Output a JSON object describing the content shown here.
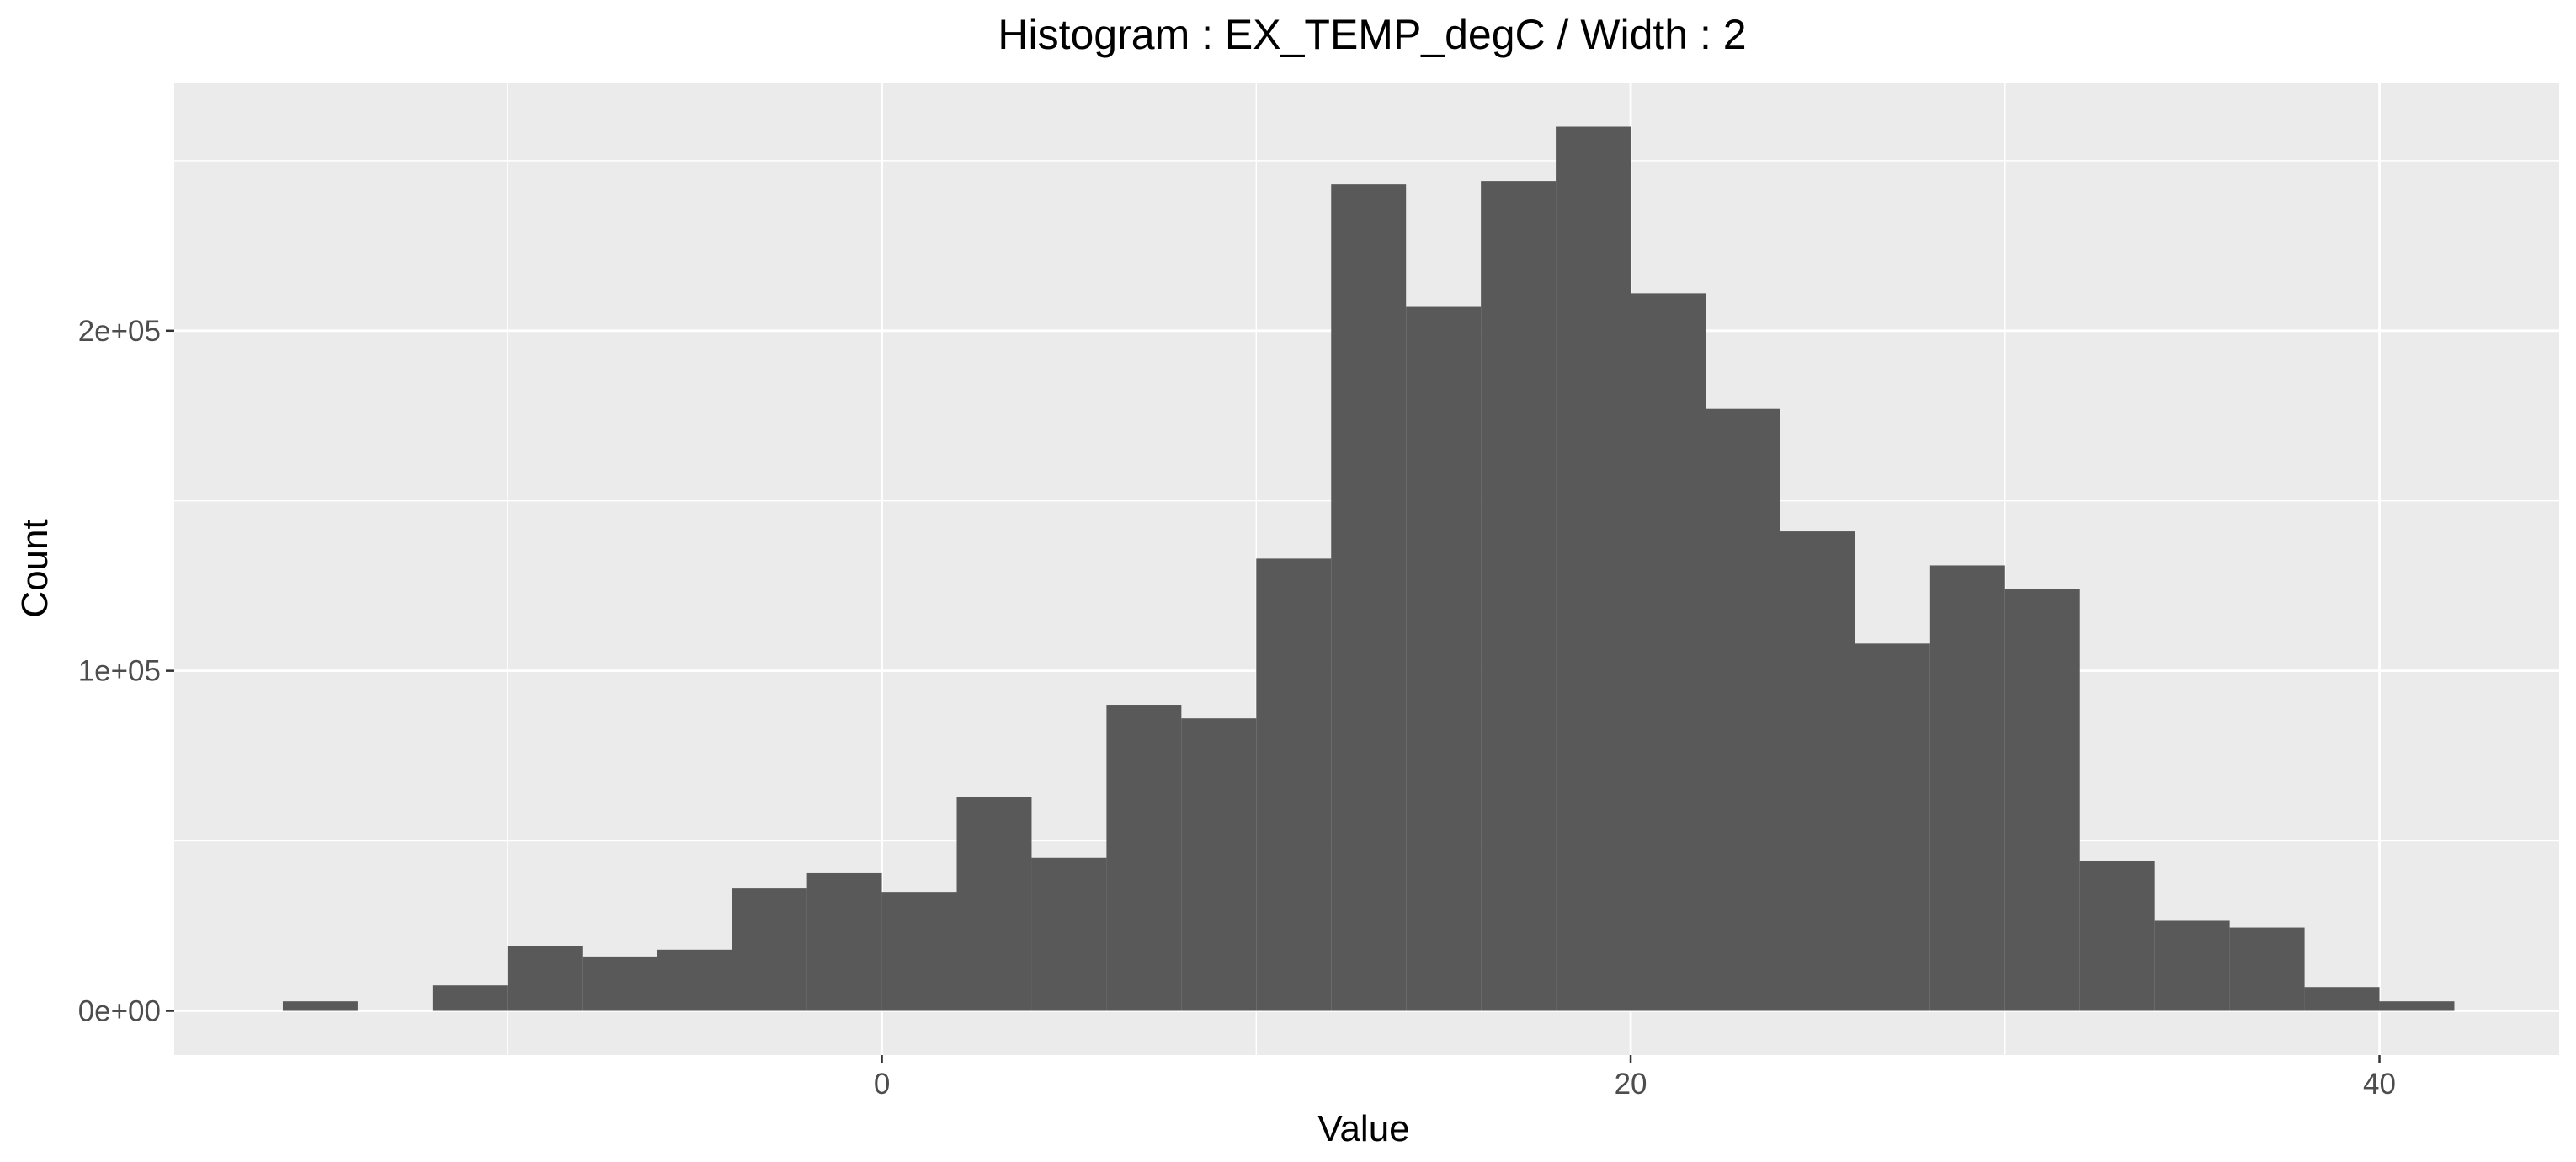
{
  "chart_data": {
    "type": "bar",
    "title": "Histogram : EX_TEMP_degC / Width : 2",
    "xlabel": "Value",
    "ylabel": "Count",
    "bin_width": 2,
    "bin_starts": [
      -16,
      -12,
      -10,
      -8,
      -6,
      -4,
      -2,
      0,
      2,
      4,
      6,
      8,
      10,
      12,
      14,
      16,
      18,
      20,
      22,
      24,
      26,
      28,
      30,
      32,
      34,
      36,
      38,
      40
    ],
    "values": [
      2800,
      7500,
      19000,
      16000,
      18000,
      36000,
      40500,
      35000,
      63000,
      45000,
      90000,
      86000,
      133000,
      243000,
      207000,
      244000,
      260000,
      211000,
      177000,
      141000,
      108000,
      131000,
      124000,
      44000,
      26500,
      24500,
      7000,
      2800
    ],
    "xlim": [
      -18.9,
      44.8
    ],
    "ylim": [
      -13000,
      273000
    ],
    "x_ticks": [
      0,
      20,
      40
    ],
    "x_tick_labels": [
      "0",
      "20",
      "40"
    ],
    "y_ticks": [
      0,
      100000,
      200000
    ],
    "y_tick_labels": [
      "0e+00",
      "1e+05",
      "2e+05"
    ],
    "grid": true,
    "colors": {
      "panel": "#ebebeb",
      "grid": "#ffffff",
      "bar": "#595959",
      "tick": "#333333"
    }
  }
}
